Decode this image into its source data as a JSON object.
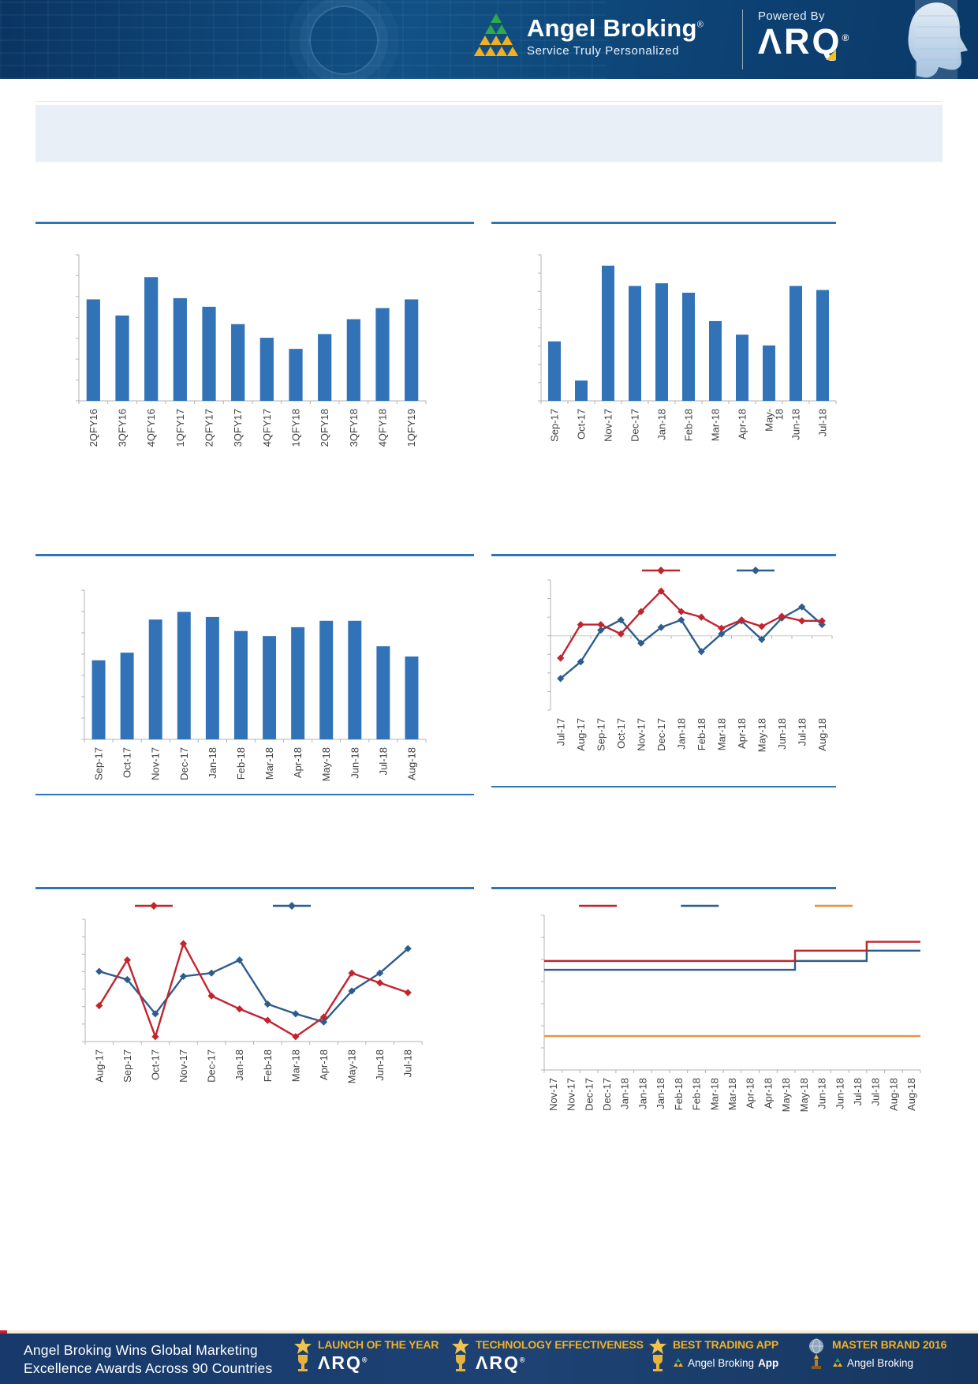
{
  "header": {
    "brand": "Angel Broking",
    "reg": "®",
    "tagline": "Service Truly Personalized",
    "powered_by": "Powered By",
    "product": "ΛRQ"
  },
  "title_banner": {
    "text": ""
  },
  "colors": {
    "bar": "#3273b8",
    "red": "#c2242e",
    "blue": "#2d5c8e",
    "orange": "#e8903f",
    "rule": "#2e75b6",
    "axis": "#b3b3b3",
    "zero": "#c9c9c9",
    "label": "#404040"
  },
  "chart_data": [
    {
      "type": "bar",
      "title": "",
      "categories": [
        "2QFY16",
        "3QFY16",
        "4QFY16",
        "1QFY17",
        "2QFY17",
        "3QFY17",
        "4QFY17",
        "1QFY18",
        "2QFY18",
        "3QFY18",
        "4QFY18",
        "1QFY19"
      ],
      "values": [
        82,
        69,
        100,
        83,
        76,
        62,
        51,
        42,
        54,
        66,
        75,
        82
      ],
      "ylim": [
        0,
        118
      ],
      "y_divs": 7
    },
    {
      "type": "bar",
      "title": "",
      "categories": [
        "Sep-17",
        "Oct-17",
        "Nov-17",
        "Dec-17",
        "Jan-18",
        "Feb-18",
        "Mar-18",
        "Apr-18",
        "May-\n18",
        "Jun-18",
        "Jul-18"
      ],
      "values": [
        44,
        15,
        100,
        85,
        87,
        80,
        59,
        49,
        41,
        85,
        82
      ],
      "ylim": [
        0,
        108
      ],
      "y_divs": 8
    },
    {
      "type": "bar",
      "title": "",
      "categories": [
        "Sep-17",
        "Oct-17",
        "Nov-17",
        "Dec-17",
        "Jan-18",
        "Feb-18",
        "Mar-18",
        "Apr-18",
        "May-18",
        "Jun-18",
        "Jul-18",
        "Aug-18"
      ],
      "values": [
        62,
        68,
        94,
        100,
        96,
        85,
        81,
        88,
        93,
        93,
        73,
        65
      ],
      "ylim": [
        0,
        117
      ],
      "y_divs": 7
    },
    {
      "type": "line",
      "title": "",
      "categories": [
        "Jul-17",
        "Aug-17",
        "Sep-17",
        "Oct-17",
        "Nov-17",
        "Dec-17",
        "Jan-18",
        "Feb-18",
        "Mar-18",
        "Apr-18",
        "May-18",
        "Jun-18",
        "Jul-18",
        "Aug-18"
      ],
      "series": [
        {
          "color": "#c2242e",
          "marker": "diamond",
          "values": [
            -1.2,
            0.6,
            0.6,
            0.1,
            1.3,
            2.4,
            1.3,
            1.0,
            0.4,
            0.85,
            0.5,
            1.05,
            0.8,
            0.8
          ]
        },
        {
          "color": "#2d5c8e",
          "marker": "diamond",
          "values": [
            -2.3,
            -1.4,
            0.3,
            0.85,
            -0.4,
            0.45,
            0.85,
            -0.85,
            0.1,
            0.8,
            -0.2,
            0.95,
            1.55,
            0.6
          ]
        }
      ],
      "ylim": [
        -4,
        3
      ],
      "y_divs": 7,
      "legend": [
        0.546,
        0.786
      ]
    },
    {
      "type": "line",
      "title": "",
      "categories": [
        "Aug-17",
        "Sep-17",
        "Oct-17",
        "Nov-17",
        "Dec-17",
        "Jan-18",
        "Feb-18",
        "Mar-18",
        "Apr-18",
        "May-18",
        "Jun-18",
        "Jul-18"
      ],
      "series": [
        {
          "color": "#c2242e",
          "marker": "diamond",
          "values": [
            2.2,
            5.0,
            0.3,
            6.0,
            2.8,
            2.0,
            1.3,
            0.3,
            1.5,
            4.2,
            3.6,
            3.0
          ]
        },
        {
          "color": "#2d5c8e",
          "marker": "diamond",
          "values": [
            4.3,
            3.8,
            1.7,
            4.0,
            4.2,
            5.0,
            2.3,
            1.7,
            1.2,
            3.1,
            4.2,
            5.7
          ]
        }
      ],
      "ylim": [
        0,
        7.5
      ],
      "y_divs": 7,
      "legend": [
        0.28,
        0.63
      ]
    },
    {
      "type": "step",
      "title": "",
      "categories": [
        "Nov-17",
        "Nov-17",
        "Dec-17",
        "Dec-17",
        "Jan-18",
        "Jan-18",
        "Jan-18",
        "Feb-18",
        "Feb-18",
        "Mar-18",
        "Mar-18",
        "Apr-18",
        "Apr-18",
        "May-18",
        "May-18",
        "Jun-18",
        "Jun-18",
        "Jul-18",
        "Jul-18",
        "Aug-18",
        "Aug-18"
      ],
      "series": [
        {
          "color": "#c2242e",
          "values": [
            7.4,
            7.4,
            7.4,
            7.4,
            7.4,
            7.4,
            7.4,
            7.4,
            7.4,
            7.4,
            7.4,
            7.4,
            7.4,
            7.4,
            8.1,
            8.1,
            8.1,
            8.1,
            8.7,
            8.7,
            8.7
          ]
        },
        {
          "color": "#2d5c8e",
          "values": [
            6.8,
            6.8,
            6.8,
            6.8,
            6.8,
            6.8,
            6.8,
            6.8,
            6.8,
            6.8,
            6.8,
            6.8,
            6.8,
            6.8,
            7.4,
            7.4,
            7.4,
            7.4,
            8.1,
            8.1,
            8.1
          ]
        },
        {
          "color": "#e8903f",
          "values": [
            2.3,
            2.3,
            2.3,
            2.3,
            2.3,
            2.3,
            2.3,
            2.3,
            2.3,
            2.3,
            2.3,
            2.3,
            2.3,
            2.3,
            2.3,
            2.3,
            2.3,
            2.3,
            2.3,
            2.3,
            2.3
          ]
        }
      ],
      "ylim": [
        0,
        10.5
      ],
      "y_divs": 7,
      "legend": [
        0.314,
        0.524,
        0.8
      ]
    }
  ],
  "footer": {
    "headline": [
      "Angel Broking Wins Global Marketing",
      "Excellence Awards Across 90 Countries"
    ],
    "awards": [
      {
        "title": "LAUNCH OF THE YEAR",
        "subtitle": "ΛRQ",
        "reg": "®"
      },
      {
        "title": "TECHNOLOGY EFFECTIVENESS",
        "subtitle": "ΛRQ",
        "reg": "®"
      },
      {
        "title": "BEST TRADING APP",
        "sub_brand": "Angel Broking",
        "sub_bold": "App"
      },
      {
        "title": "MASTER BRAND 2016",
        "sub_brand": "Angel Broking"
      }
    ]
  }
}
